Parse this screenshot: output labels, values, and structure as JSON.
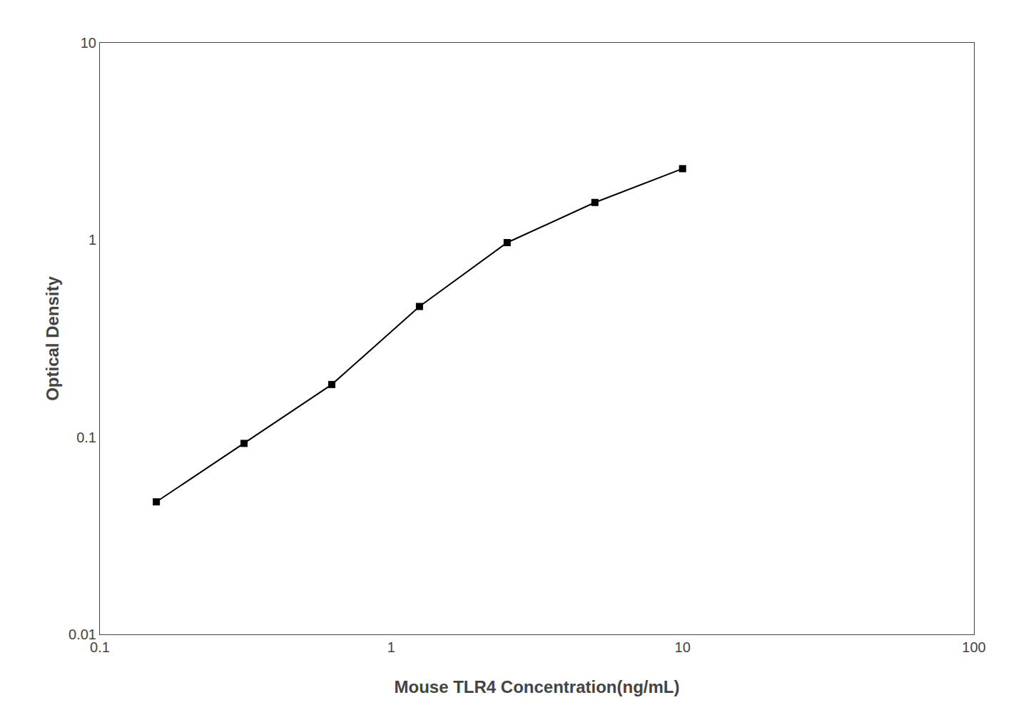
{
  "chart_data": {
    "type": "line",
    "x": [
      0.15625,
      0.3125,
      0.625,
      1.25,
      2.5,
      5.0,
      10.0
    ],
    "values": [
      0.047,
      0.093,
      0.185,
      0.46,
      0.97,
      1.55,
      2.3
    ],
    "xlabel": "Mouse TLR4 Concentration(ng/mL)",
    "ylabel": "Optical Density",
    "xlim": [
      0.1,
      100
    ],
    "ylim": [
      0.01,
      10
    ],
    "xticks": [
      0.1,
      1,
      10,
      100
    ],
    "yticks": [
      0.01,
      0.1,
      1,
      10
    ],
    "log": true,
    "grid": false,
    "color": "#000000",
    "marker": "square"
  }
}
